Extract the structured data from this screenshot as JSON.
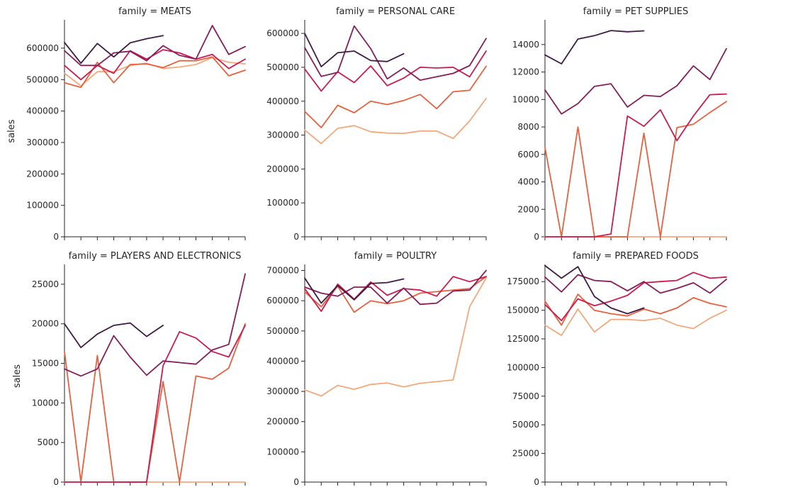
{
  "palette": [
    "#f4a87c",
    "#e8613f",
    "#cb1b4f",
    "#851e5a",
    "#3e1a44"
  ],
  "chart_data": [
    {
      "type": "line",
      "title": "family = MEATS",
      "ylabel": "sales",
      "ylim": [
        0,
        690000
      ],
      "yticks": [
        0,
        100000,
        200000,
        300000,
        400000,
        500000,
        600000
      ],
      "x": [
        1,
        2,
        3,
        4,
        5,
        6,
        7,
        8,
        9,
        10,
        11,
        12
      ],
      "series": [
        {
          "values": [
            520000,
            480000,
            525000,
            525000,
            545000,
            552000,
            535000,
            540000,
            548000,
            570000,
            555000,
            550000
          ]
        },
        {
          "values": [
            490000,
            475000,
            555000,
            490000,
            548000,
            550000,
            538000,
            560000,
            560000,
            572000,
            512000,
            530000
          ]
        },
        {
          "values": [
            545000,
            500000,
            545000,
            520000,
            592000,
            565000,
            595000,
            585000,
            565000,
            580000,
            535000,
            565000
          ]
        },
        {
          "values": [
            592000,
            545000,
            545000,
            585000,
            590000,
            560000,
            608000,
            577000,
            565000,
            672000,
            580000,
            605000
          ]
        },
        {
          "values": [
            618000,
            552000,
            615000,
            572000,
            617000,
            630000,
            640000,
            null,
            null,
            null,
            null,
            null
          ]
        }
      ]
    },
    {
      "type": "line",
      "title": "family = PERSONAL CARE",
      "ylabel": "",
      "ylim": [
        0,
        640000
      ],
      "yticks": [
        0,
        100000,
        200000,
        300000,
        400000,
        500000,
        600000
      ],
      "x": [
        1,
        2,
        3,
        4,
        5,
        6,
        7,
        8,
        9,
        10,
        11,
        12
      ],
      "series": [
        {
          "values": [
            315000,
            275000,
            320000,
            328000,
            310000,
            306000,
            305000,
            312000,
            312000,
            290000,
            342000,
            408000
          ]
        },
        {
          "values": [
            370000,
            322000,
            388000,
            366000,
            400000,
            390000,
            402000,
            420000,
            378000,
            428000,
            432000,
            503000
          ]
        },
        {
          "values": [
            495000,
            430000,
            487000,
            455000,
            504000,
            446000,
            468000,
            500000,
            498000,
            500000,
            472000,
            548000
          ]
        },
        {
          "values": [
            558000,
            473000,
            485000,
            622000,
            555000,
            466000,
            498000,
            462000,
            472000,
            482000,
            505000,
            585000
          ]
        },
        {
          "values": [
            600000,
            502000,
            543000,
            548000,
            520000,
            517000,
            540000,
            null,
            null,
            null,
            null,
            null
          ]
        }
      ]
    },
    {
      "type": "line",
      "title": "family = PET SUPPLIES",
      "ylabel": "",
      "ylim": [
        0,
        15800
      ],
      "yticks": [
        0,
        2000,
        4000,
        6000,
        8000,
        10000,
        12000,
        14000
      ],
      "x": [
        1,
        2,
        3,
        4,
        5,
        6,
        7,
        8,
        9,
        10,
        11,
        12
      ],
      "series": [
        {
          "values": [
            0,
            0,
            0,
            0,
            0,
            0,
            0,
            0,
            0,
            0,
            0,
            0
          ]
        },
        {
          "values": [
            6500,
            0,
            8000,
            0,
            0,
            0,
            7550,
            0,
            7950,
            8200,
            9050,
            9850
          ]
        },
        {
          "values": [
            0,
            0,
            0,
            0,
            200,
            8800,
            8050,
            9250,
            7000,
            8800,
            10350,
            10400
          ]
        },
        {
          "values": [
            10700,
            8950,
            9700,
            10950,
            11150,
            9450,
            10300,
            10220,
            11000,
            12450,
            11450,
            13700
          ]
        },
        {
          "values": [
            13250,
            12600,
            14400,
            14650,
            15020,
            14930,
            15000,
            null,
            null,
            null,
            null,
            null
          ]
        }
      ]
    },
    {
      "type": "line",
      "title": "family = PLAYERS AND ELECTRONICS",
      "ylabel": "sales",
      "ylim": [
        0,
        27500
      ],
      "yticks": [
        0,
        5000,
        10000,
        15000,
        20000,
        25000
      ],
      "x": [
        1,
        2,
        3,
        4,
        5,
        6,
        7,
        8,
        9,
        10,
        11,
        12
      ],
      "series": [
        {
          "values": [
            0,
            0,
            0,
            0,
            0,
            0,
            0,
            0,
            0,
            0,
            0,
            0
          ]
        },
        {
          "values": [
            16500,
            0,
            16000,
            0,
            0,
            0,
            12700,
            0,
            13400,
            13000,
            14400,
            20000
          ]
        },
        {
          "values": [
            0,
            0,
            0,
            0,
            0,
            0,
            14700,
            19000,
            18200,
            16500,
            15800,
            19800
          ]
        },
        {
          "values": [
            14300,
            13400,
            14300,
            18500,
            15800,
            13500,
            15300,
            15100,
            14900,
            16700,
            17400,
            26300
          ]
        },
        {
          "values": [
            20000,
            17000,
            18700,
            19800,
            20100,
            18400,
            19800,
            null,
            null,
            null,
            null,
            null
          ]
        }
      ]
    },
    {
      "type": "line",
      "title": "family = POULTRY",
      "ylabel": "",
      "ylim": [
        0,
        720000
      ],
      "yticks": [
        0,
        100000,
        200000,
        300000,
        400000,
        500000,
        600000,
        700000
      ],
      "x": [
        1,
        2,
        3,
        4,
        5,
        6,
        7,
        8,
        9,
        10,
        11,
        12
      ],
      "series": [
        {
          "values": [
            305000,
            285000,
            320000,
            307000,
            323000,
            328000,
            315000,
            327000,
            332000,
            338000,
            580000,
            675000
          ]
        },
        {
          "values": [
            630000,
            580000,
            648000,
            562000,
            600000,
            590000,
            600000,
            625000,
            630000,
            635000,
            640000,
            680000
          ]
        },
        {
          "values": [
            640000,
            565000,
            655000,
            605000,
            662000,
            618000,
            640000,
            635000,
            615000,
            680000,
            663000,
            680000
          ]
        },
        {
          "values": [
            645000,
            625000,
            615000,
            645000,
            645000,
            592000,
            642000,
            588000,
            592000,
            632000,
            635000,
            700000
          ]
        },
        {
          "values": [
            675000,
            592000,
            650000,
            603000,
            657000,
            660000,
            672000,
            null,
            null,
            null,
            null,
            null
          ]
        }
      ]
    },
    {
      "type": "line",
      "title": "family = PREPARED FOODS",
      "ylabel": "",
      "ylim": [
        0,
        190000
      ],
      "yticks": [
        0,
        25000,
        50000,
        75000,
        100000,
        125000,
        150000,
        175000
      ],
      "x": [
        1,
        2,
        3,
        4,
        5,
        6,
        7,
        8,
        9,
        10,
        11,
        12
      ],
      "series": [
        {
          "values": [
            137000,
            128000,
            151000,
            131000,
            142000,
            142000,
            141000,
            143000,
            137000,
            134000,
            143000,
            150000
          ]
        },
        {
          "values": [
            158000,
            137000,
            164000,
            150000,
            147000,
            145000,
            151000,
            147000,
            152000,
            161000,
            156000,
            153000
          ]
        },
        {
          "values": [
            155000,
            141000,
            160000,
            154000,
            158000,
            163000,
            174000,
            175000,
            176000,
            183000,
            178000,
            179000
          ]
        },
        {
          "values": [
            179000,
            166000,
            181000,
            176000,
            175000,
            167000,
            175000,
            165000,
            169000,
            174000,
            165000,
            177000
          ]
        },
        {
          "values": [
            189000,
            178000,
            188000,
            162000,
            152000,
            147000,
            152000,
            null,
            null,
            null,
            null,
            null
          ]
        }
      ]
    }
  ]
}
